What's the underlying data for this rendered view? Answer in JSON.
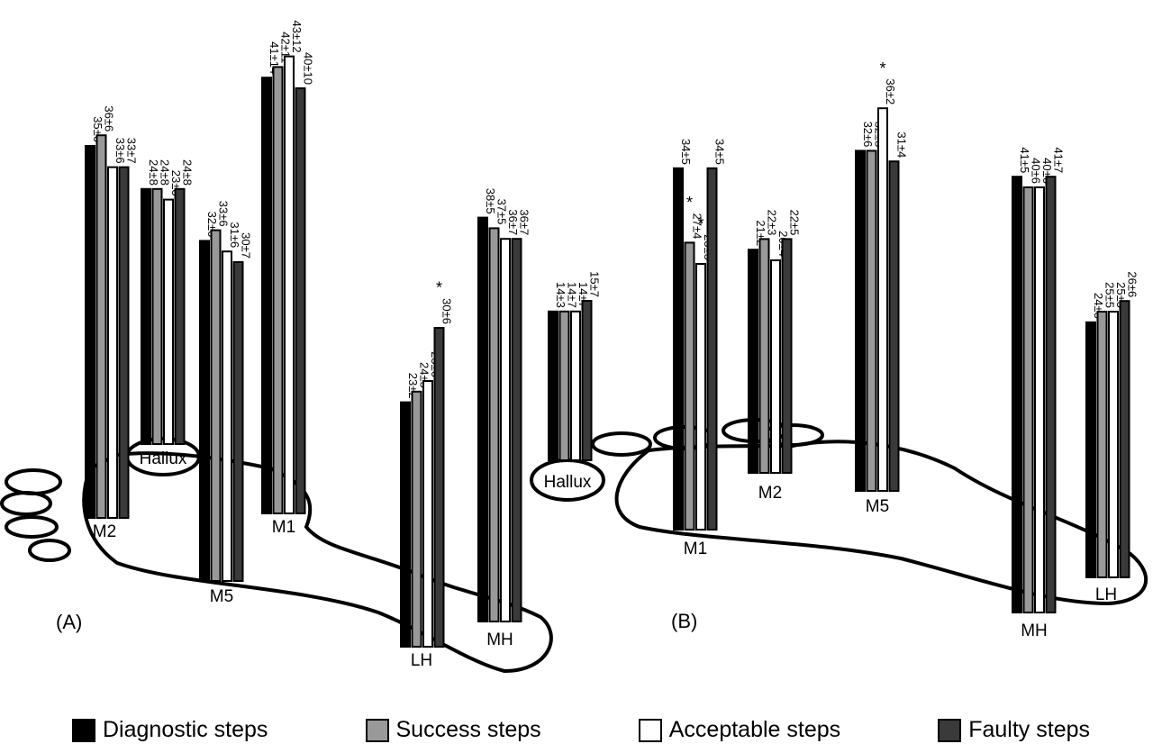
{
  "chart_data": [
    {
      "type": "bar",
      "panel_label": "(A)",
      "series_names": [
        "Diagnostic steps",
        "Success steps",
        "Acceptable steps",
        "Faulty steps"
      ],
      "regions": [
        {
          "name": "M2",
          "values": [
            "35±6",
            "36±6",
            "33±6",
            "33±7"
          ],
          "sig": [
            false,
            false,
            false,
            false
          ]
        },
        {
          "name": "Hallux",
          "values": [
            "24±8",
            "24±8",
            "23±8",
            "24±8"
          ],
          "sig": [
            false,
            false,
            false,
            false
          ]
        },
        {
          "name": "M5",
          "values": [
            "32±6",
            "33±6",
            "31±6",
            "30±7"
          ],
          "sig": [
            false,
            false,
            false,
            false
          ]
        },
        {
          "name": "M1",
          "values": [
            "41±14",
            "42±11",
            "43±12",
            "40±10"
          ],
          "sig": [
            false,
            false,
            false,
            false
          ]
        },
        {
          "name": "LH",
          "values": [
            "23±2",
            "24±5",
            "25±6",
            "30±6"
          ],
          "sig": [
            false,
            false,
            false,
            true
          ]
        },
        {
          "name": "MH",
          "values": [
            "38±5",
            "37±5",
            "36±7",
            "36±7"
          ],
          "sig": [
            false,
            false,
            false,
            false
          ]
        },
        {
          "name": "Hallux",
          "values": [
            "14±3",
            "14±7",
            "14±7",
            "15±7"
          ],
          "sig": [
            false,
            false,
            false,
            false
          ]
        }
      ]
    },
    {
      "type": "bar",
      "panel_label": "(B)",
      "series_names": [
        "Diagnostic steps",
        "Success steps",
        "Acceptable steps",
        "Faulty steps"
      ],
      "regions": [
        {
          "name": "M1",
          "values": [
            "34±5",
            "27±4",
            "25±5",
            "34±5"
          ],
          "sig": [
            false,
            true,
            true,
            false
          ]
        },
        {
          "name": "M2",
          "values": [
            "21±2",
            "22±3",
            "20±4",
            "22±5"
          ],
          "sig": [
            false,
            false,
            false,
            false
          ]
        },
        {
          "name": "M5",
          "values": [
            "32±6",
            "32±3",
            "36±2",
            "31±4"
          ],
          "sig": [
            false,
            false,
            true,
            false
          ]
        },
        {
          "name": "MH",
          "values": [
            "41±5",
            "40±6",
            "40±6",
            "41±7"
          ],
          "sig": [
            false,
            false,
            false,
            false
          ]
        },
        {
          "name": "LH",
          "values": [
            "24±3",
            "25±5",
            "25±5",
            "26±6"
          ],
          "sig": [
            false,
            false,
            false,
            false
          ]
        }
      ]
    }
  ],
  "significance_marker": "*",
  "legend": {
    "diagnostic": "Diagnostic steps",
    "success": "Success steps",
    "acceptable": "Acceptable steps",
    "faulty": "Faulty steps"
  },
  "colors": {
    "diagnostic": "#000000",
    "success": "#999999",
    "acceptable": "#ffffff",
    "faulty": "#3a3a3a",
    "outline": "#000000"
  }
}
